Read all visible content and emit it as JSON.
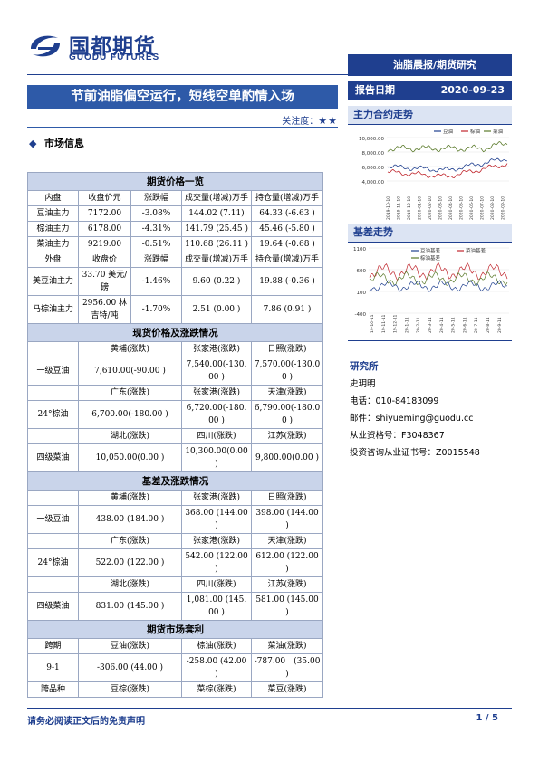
{
  "brand": {
    "name_cn": "国都期货",
    "name_en": "GUODU FUTURES"
  },
  "ribbon": "油脂晨报/期货研究",
  "title": "节前油脂偏空运行，短线空单酌情入场",
  "attention": {
    "label": "关注度：",
    "stars": "★★"
  },
  "section_title": "市场信息",
  "report_date": {
    "label": "报告日期",
    "value": "2020-09-23"
  },
  "main_contract": {
    "title": "主力合约走势",
    "legend": [
      "豆油",
      "棕油",
      "菜油"
    ],
    "y_ticks": [
      "10,000.00",
      "8,000.00",
      "6,000.00",
      "4,000.00"
    ],
    "x_ticks": [
      "2019-10-10",
      "2019-11-10",
      "2019-12-10",
      "2020-01-10",
      "2020-02-10",
      "2020-03-10",
      "2020-04-10",
      "2020-05-10",
      "2020-06-10",
      "2020-07-10",
      "2020-08-10",
      "2020-09-10"
    ]
  },
  "basis": {
    "title": "基差走势",
    "legend": [
      "豆油基差",
      "菜油基差",
      "棕油基差"
    ],
    "y_ticks": [
      "1100",
      "600",
      "100",
      "-400"
    ],
    "x_ticks": [
      "19-10-11",
      "19-11-11",
      "19-12-11",
      "20-1-11",
      "20-2-11",
      "20-3-11",
      "20-4-11",
      "20-5-11",
      "20-6-11",
      "20-7-11",
      "20-8-11",
      "20-9-11"
    ]
  },
  "research": {
    "title": "研究所",
    "name": "史玥明",
    "phone": "电话：010-84183099",
    "email": "邮件：shiyueming@guodu.cc",
    "cert": "从业资格号：F3048367",
    "advisor": "投资咨询从业证书号：Z0015548"
  },
  "table": {
    "futures_title": "期货价格一览",
    "inner_header": [
      "内盘",
      "收盘价元",
      "涨跌幅",
      "成交量(增减)万手",
      "持仓量(增减)万手"
    ],
    "inner_rows": [
      [
        "豆油主力",
        "7172.00",
        "-3.08%",
        "144.02 (7.11)",
        "64.33 (-6.63 )"
      ],
      [
        "棕油主力",
        "6178.00",
        "-4.31%",
        "141.79 (25.45 )",
        "45.46 (-5.80 )"
      ],
      [
        "菜油主力",
        "9219.00",
        "-0.51%",
        "110.68 (26.11 )",
        "19.64 (-0.68 )"
      ]
    ],
    "outer_header": [
      "外盘",
      "收盘价",
      "涨跌幅",
      "成交量(增减)万手",
      "持仓量(增减)万手"
    ],
    "outer_rows": [
      [
        "美豆油主力",
        "33.70 美元/磅",
        "-1.46%",
        "9.60 (0.22 )",
        "19.88 (-0.36 )"
      ],
      [
        "马棕油主力",
        "2956.00 林吉特/吨",
        "-1.70%",
        "2.51 (0.00 )",
        "7.86 (0.91 )"
      ]
    ],
    "spot_title": "现货价格及涨跌情况",
    "spot_rows": [
      [
        "",
        "黄埔(涨跌)",
        "张家港(涨跌)",
        "日照(涨跌)"
      ],
      [
        "一级豆油",
        "7,610.00(-90.00 )",
        "7,540.00(-130.00 )",
        "7,570.00(-130.00 )"
      ],
      [
        "",
        "广东(涨跌)",
        "张家港(涨跌)",
        "天津(涨跌)"
      ],
      [
        "24°棕油",
        "6,700.00(-180.00 )",
        "6,720.00(-180.00 )",
        "6,790.00(-180.00 )"
      ],
      [
        "",
        "湖北(涨跌)",
        "四川(涨跌)",
        "江苏(涨跌)"
      ],
      [
        "四级菜油",
        "10,050.00(0.00 )",
        "10,300.00(0.00 )",
        "9,800.00(0.00 )"
      ]
    ],
    "basis_title": "基差及涨跌情况",
    "basis_rows": [
      [
        "",
        "黄埔(涨跌)",
        "张家港(涨跌)",
        "日照(涨跌)"
      ],
      [
        "一级豆油",
        "438.00 (184.00 )",
        "368.00 (144.00 )",
        "398.00 (144.00 )"
      ],
      [
        "",
        "广东(涨跌)",
        "张家港(涨跌)",
        "天津(涨跌)"
      ],
      [
        "24°棕油",
        "522.00 (122.00 )",
        "542.00 (122.00 )",
        "612.00 (122.00 )"
      ],
      [
        "",
        "湖北(涨跌)",
        "四川(涨跌)",
        "江苏(涨跌)"
      ],
      [
        "四级菜油",
        "831.00 (145.00 )",
        "1,081.00 (145.00 )",
        "581.00 (145.00 )"
      ]
    ],
    "arb_title": "期货市场套利",
    "arb_rows": [
      [
        "跨期",
        "豆油(涨跌)",
        "棕油(涨跌)",
        "菜油(涨跌)"
      ],
      [
        "9-1",
        "-306.00 (44.00 )",
        "-258.00 (42.00 )",
        "-787.00　(35.00 )"
      ],
      [
        "跨品种",
        "豆棕(涨跌)",
        "菜棕(涨跌)",
        "菜豆(涨跌)"
      ]
    ]
  },
  "footer": {
    "disclaimer": "请务必阅读正文后的免责声明",
    "page": "1 / 5"
  },
  "colors": {
    "navy": "#1f3f8f",
    "title_blue": "#2e5aa8",
    "section_fill": "#c9d4ea",
    "soy": "#1f3f8f",
    "palm": "#c0262d",
    "rapeseed": "#5a7a2a"
  }
}
